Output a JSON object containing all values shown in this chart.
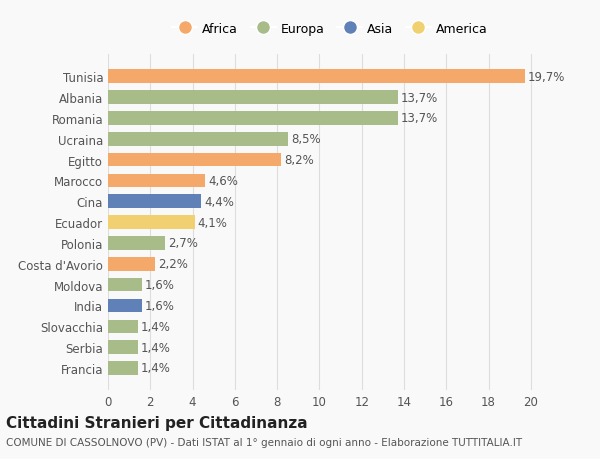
{
  "categories": [
    "Tunisia",
    "Albania",
    "Romania",
    "Ucraina",
    "Egitto",
    "Marocco",
    "Cina",
    "Ecuador",
    "Polonia",
    "Costa d'Avorio",
    "Moldova",
    "India",
    "Slovacchia",
    "Serbia",
    "Francia"
  ],
  "values": [
    19.7,
    13.7,
    13.7,
    8.5,
    8.2,
    4.6,
    4.4,
    4.1,
    2.7,
    2.2,
    1.6,
    1.6,
    1.4,
    1.4,
    1.4
  ],
  "labels": [
    "19,7%",
    "13,7%",
    "13,7%",
    "8,5%",
    "8,2%",
    "4,6%",
    "4,4%",
    "4,1%",
    "2,7%",
    "2,2%",
    "1,6%",
    "1,6%",
    "1,4%",
    "1,4%",
    "1,4%"
  ],
  "regions": [
    "Africa",
    "Europa",
    "Europa",
    "Europa",
    "Africa",
    "Africa",
    "Asia",
    "America",
    "Europa",
    "Africa",
    "Europa",
    "Asia",
    "Europa",
    "Europa",
    "Europa"
  ],
  "colors": {
    "Africa": "#F4A96A",
    "Europa": "#A8BC8A",
    "Asia": "#6080B8",
    "America": "#F0D070"
  },
  "bar_colors": [
    "#F4A96A",
    "#A8BC8A",
    "#A8BC8A",
    "#A8BC8A",
    "#F4A96A",
    "#F4A96A",
    "#6080B8",
    "#F0D070",
    "#A8BC8A",
    "#F4A96A",
    "#A8BC8A",
    "#6080B8",
    "#A8BC8A",
    "#A8BC8A",
    "#A8BC8A"
  ],
  "legend_order": [
    "Africa",
    "Europa",
    "Asia",
    "America"
  ],
  "xlim": [
    0,
    21
  ],
  "xticks": [
    0,
    2,
    4,
    6,
    8,
    10,
    12,
    14,
    16,
    18,
    20
  ],
  "title": "Cittadini Stranieri per Cittadinanza",
  "subtitle": "COMUNE DI CASSOLNOVO (PV) - Dati ISTAT al 1° gennaio di ogni anno - Elaborazione TUTTITALIA.IT",
  "background_color": "#f9f9f9",
  "grid_color": "#dddddd",
  "label_fontsize": 8.5,
  "tick_fontsize": 8.5,
  "title_fontsize": 11,
  "subtitle_fontsize": 7.5
}
